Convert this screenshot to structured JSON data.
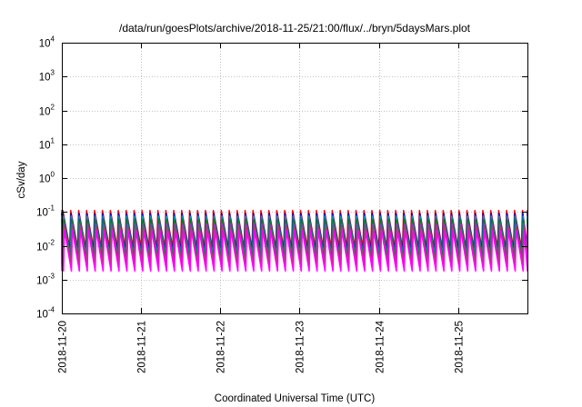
{
  "chart_data": {
    "type": "line",
    "title": "/data/run/goesPlots/archive/2018-11-25/21:00/flux/../bryn/5daysMars.plot",
    "xlabel": "Coordinated Universal Time (UTC)",
    "ylabel": "cSv/day",
    "yscale": "log",
    "ylim": [
      0.0001,
      10000
    ],
    "ytick_labels": [
      {
        "value": 0.0001,
        "base": "10",
        "exp": "-4"
      },
      {
        "value": 0.001,
        "base": "10",
        "exp": "-3"
      },
      {
        "value": 0.01,
        "base": "10",
        "exp": "-2"
      },
      {
        "value": 0.1,
        "base": "10",
        "exp": "-1"
      },
      {
        "value": 1,
        "base": "10",
        "exp": "0"
      },
      {
        "value": 10,
        "base": "10",
        "exp": "1"
      },
      {
        "value": 100,
        "base": "10",
        "exp": "2"
      },
      {
        "value": 1000,
        "base": "10",
        "exp": "3"
      },
      {
        "value": 10000,
        "base": "10",
        "exp": "4"
      }
    ],
    "xlim": [
      "2018-11-20",
      "2018-11-25T21:00"
    ],
    "xtick_labels": [
      "2018-11-20",
      "2018-11-21",
      "2018-11-22",
      "2018-11-23",
      "2018-11-24",
      "2018-11-25"
    ],
    "grid": true,
    "legend": "none",
    "pattern": {
      "period_hours": 2.4,
      "min_range": [
        0.0018,
        0.012
      ],
      "max_range": [
        0.03,
        0.11
      ]
    },
    "series": [
      {
        "color": "#ff0000",
        "low": 0.0085,
        "high": 0.11
      },
      {
        "color": "#0000c8",
        "low": 0.0065,
        "high": 0.09
      },
      {
        "color": "#00a0b0",
        "low": 0.005,
        "high": 0.075
      },
      {
        "color": "#008000",
        "low": 0.0038,
        "high": 0.06
      },
      {
        "color": "#9932cc",
        "low": 0.003,
        "high": 0.045
      },
      {
        "color": "#a0522d",
        "low": 0.0025,
        "high": 0.035
      },
      {
        "color": "#ff00ff",
        "low": 0.0018,
        "high": 0.03
      }
    ]
  }
}
